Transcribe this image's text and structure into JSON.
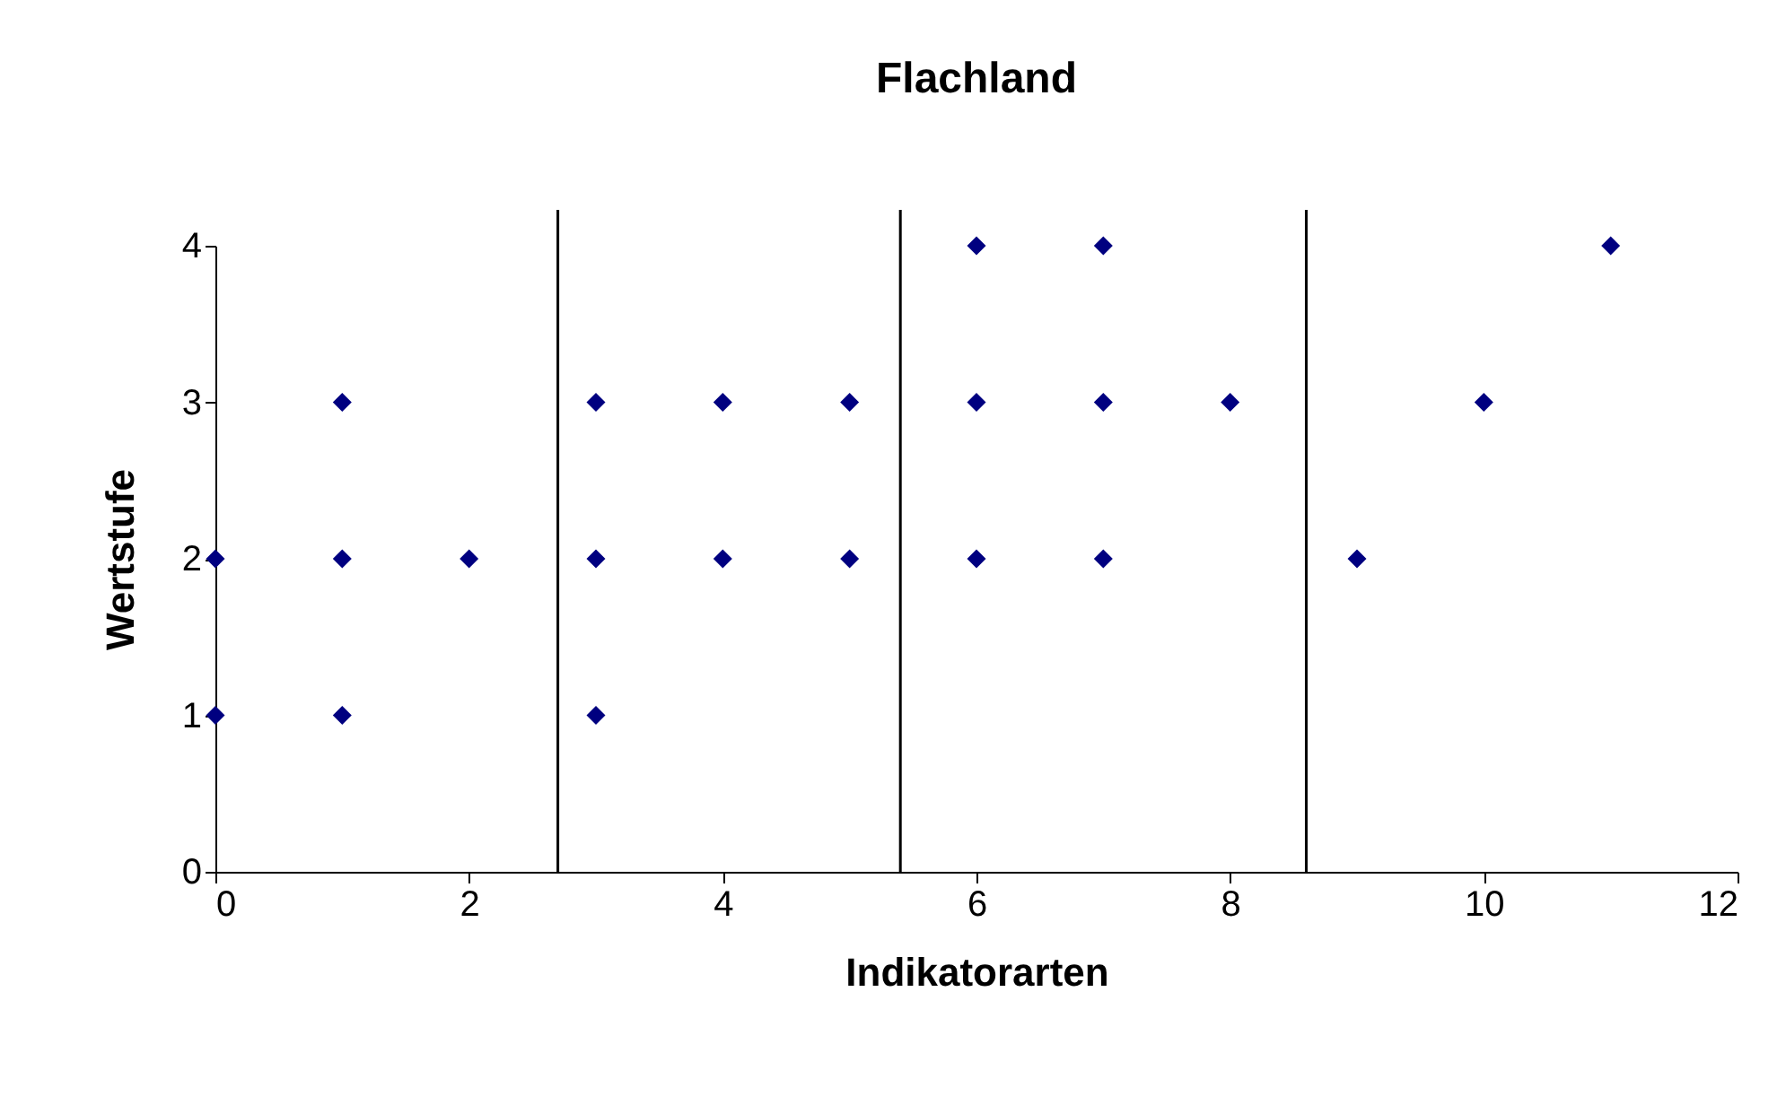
{
  "chart_data": {
    "type": "scatter",
    "title": "Flachland",
    "xlabel": "Indikatorarten",
    "ylabel": "Wertstufe",
    "x": [
      0,
      0,
      1,
      1,
      1,
      2,
      3,
      3,
      3,
      4,
      4,
      5,
      5,
      6,
      6,
      6,
      7,
      7,
      7,
      8,
      9,
      10,
      11
    ],
    "series": [
      {
        "color": "#000080",
        "values": [
          1,
          2,
          1,
          2,
          3,
          2,
          1,
          2,
          3,
          2,
          3,
          2,
          3,
          2,
          3,
          4,
          2,
          3,
          4,
          3,
          2,
          3,
          4
        ]
      }
    ],
    "xlim": [
      0,
      12
    ],
    "xticks": [
      0,
      2,
      4,
      6,
      8,
      10,
      12
    ],
    "ylim": [
      0,
      4
    ],
    "yticks": [
      0,
      1,
      2,
      3,
      4
    ],
    "ref_lines": [
      {
        "axis": "x",
        "value": 2.7,
        "color": "#000000"
      },
      {
        "axis": "x",
        "value": 5.4,
        "color": "#000000"
      },
      {
        "axis": "x",
        "value": 8.6,
        "color": "#000000"
      }
    ],
    "marker": "diamond",
    "grid": false
  }
}
